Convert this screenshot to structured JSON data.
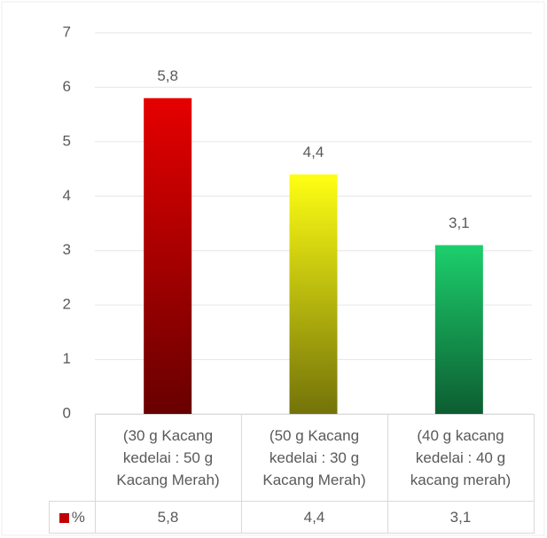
{
  "chart_data": {
    "type": "bar",
    "categories": [
      "(30 g Kacang kedelai : 50 g Kacang Merah)",
      "(50 g Kacang kedelai : 30 g Kacang Merah)",
      "(40 g kacang kedelai : 40 g kacang merah)"
    ],
    "series": [
      {
        "name": "%",
        "color": "#c00000",
        "values": [
          5.8,
          4.4,
          3.1
        ],
        "value_labels": [
          "5,8",
          "4,4",
          "3,1"
        ]
      }
    ],
    "colors": [
      "#e60000",
      "#ffff14",
      "#1ccf6c"
    ],
    "ylim": [
      0,
      7
    ],
    "yticks": [
      0,
      1,
      2,
      3,
      4,
      5,
      6,
      7
    ],
    "grid": true,
    "data_table": true
  }
}
